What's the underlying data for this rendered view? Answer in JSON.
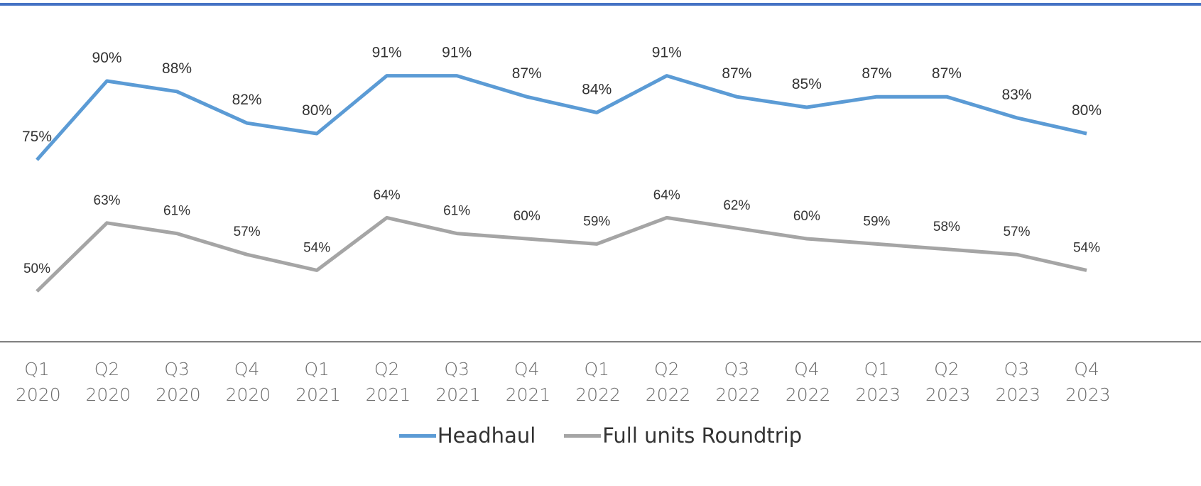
{
  "chart_data": {
    "type": "line",
    "categories": [
      "Q1 2020",
      "Q2 2020",
      "Q3 2020",
      "Q4 2020",
      "Q1 2021",
      "Q2 2021",
      "Q3 2021",
      "Q4 2021",
      "Q1 2022",
      "Q2 2022",
      "Q3 2022",
      "Q4 2022",
      "Q1 2023",
      "Q2 2023",
      "Q3 2023",
      "Q4 2023"
    ],
    "series": [
      {
        "name": "Headhaul",
        "color": "#5b9bd5",
        "values": [
          75,
          90,
          88,
          82,
          80,
          91,
          91,
          87,
          84,
          91,
          87,
          85,
          87,
          87,
          83,
          80
        ],
        "value_labels": [
          "75%",
          "90%",
          "88%",
          "82%",
          "80%",
          "91%",
          "91%",
          "87%",
          "84%",
          "91%",
          "87%",
          "85%",
          "87%",
          "87%",
          "83%",
          "80%"
        ]
      },
      {
        "name": "Full units Roundtrip",
        "color": "#a5a5a5",
        "values": [
          50,
          63,
          61,
          57,
          54,
          64,
          61,
          60,
          59,
          64,
          62,
          60,
          59,
          58,
          57,
          54
        ],
        "value_labels": [
          "50%",
          "63%",
          "61%",
          "57%",
          "54%",
          "64%",
          "61%",
          "60%",
          "59%",
          "64%",
          "62%",
          "60%",
          "59%",
          "58%",
          "57%",
          "54%"
        ]
      }
    ],
    "ylim": [
      40,
      100
    ],
    "legend": "bottom"
  }
}
